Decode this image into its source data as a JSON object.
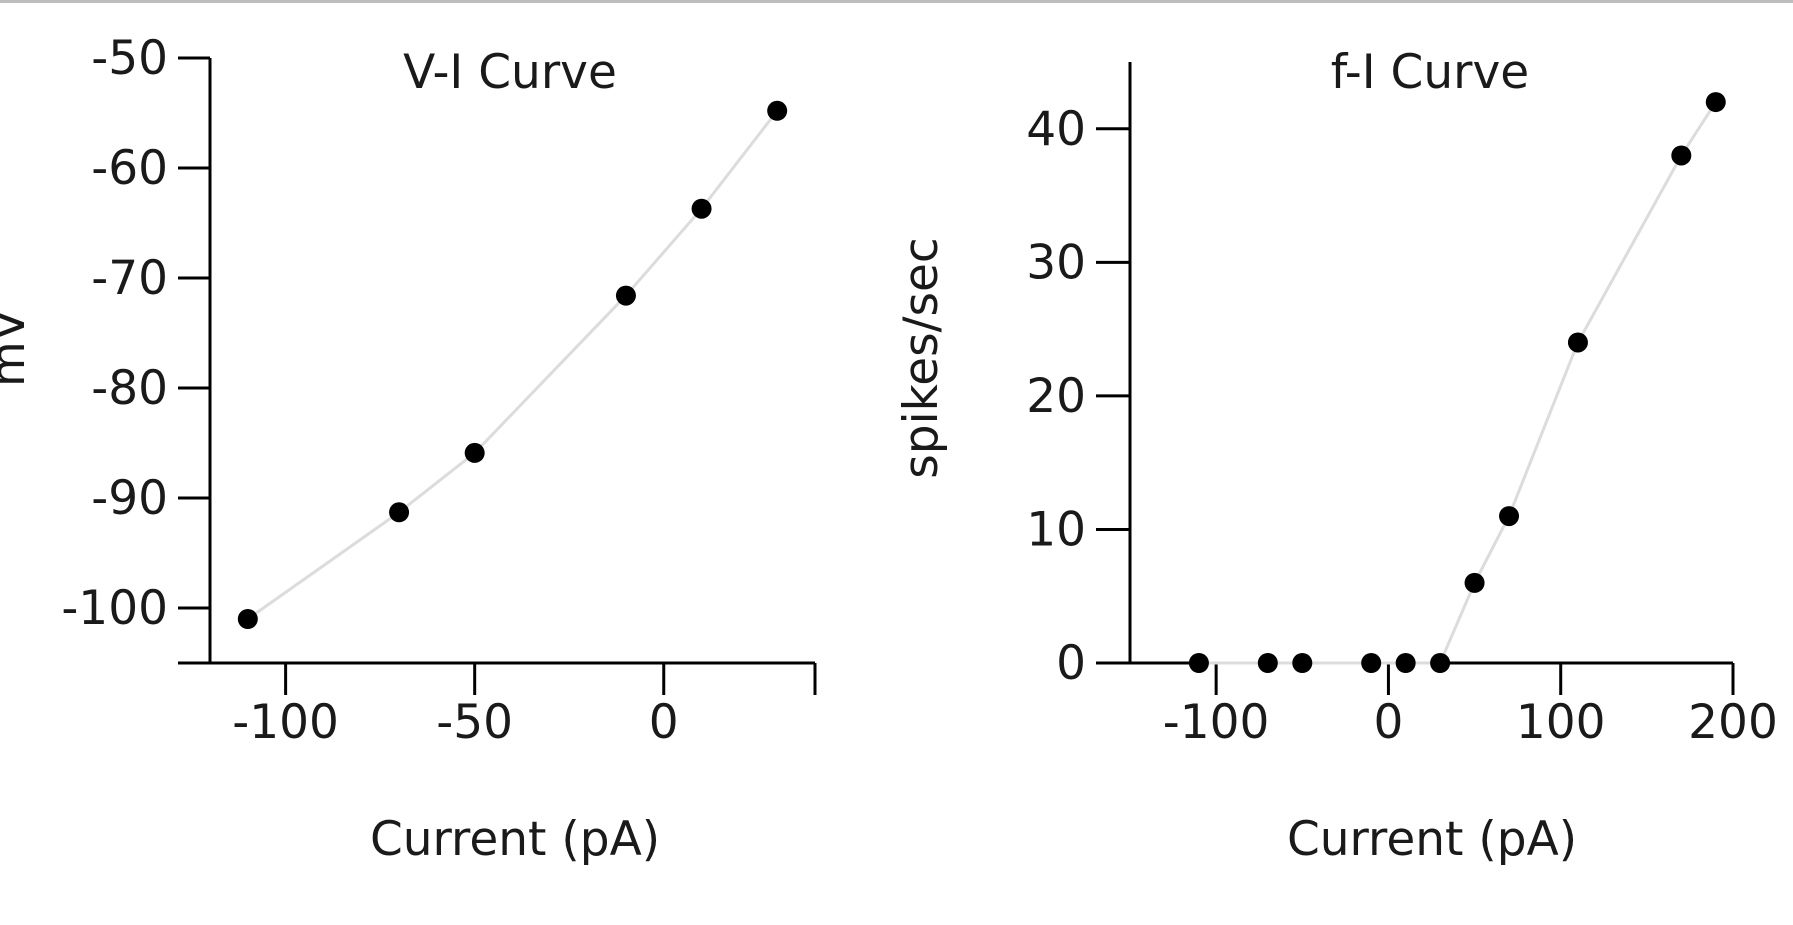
{
  "chart_data": [
    {
      "type": "scatter",
      "title": "V-I Curve",
      "xlabel": "Current (pA)",
      "ylabel": "mV",
      "xlim": [
        -120,
        40
      ],
      "ylim": [
        -105,
        -50
      ],
      "xticks": [
        -100,
        -50,
        0
      ],
      "yticks": [
        -50,
        -60,
        -70,
        -80,
        -90,
        -100
      ],
      "x": [
        -110,
        -70,
        -50,
        -10,
        10,
        30
      ],
      "y": [
        -101,
        -91.3,
        -85.9,
        -71.6,
        -63.7,
        -54.8
      ],
      "connected": true,
      "grid": false
    },
    {
      "type": "scatter",
      "title": "f-I Curve",
      "xlabel": "Current (pA)",
      "ylabel": "spikes/sec",
      "xlim": [
        -150,
        200
      ],
      "ylim": [
        0,
        45
      ],
      "xticks": [
        -100,
        0,
        100,
        200
      ],
      "yticks": [
        0,
        10,
        20,
        30,
        40
      ],
      "x": [
        -110,
        -70,
        -50,
        -10,
        10,
        30,
        50,
        70,
        110,
        170,
        190
      ],
      "y": [
        0,
        0,
        0,
        0,
        0,
        0,
        6,
        11,
        24,
        38,
        42
      ],
      "connected": true,
      "grid": false
    }
  ]
}
